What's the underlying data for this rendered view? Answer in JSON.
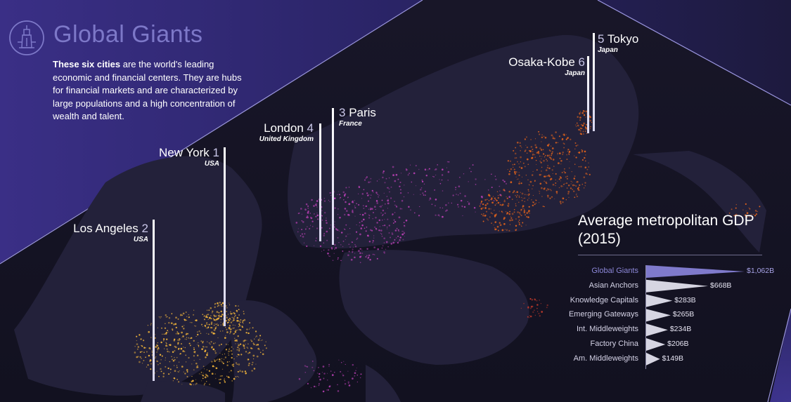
{
  "header": {
    "title": "Global Giants",
    "intro_bold": "These six cities",
    "intro_rest": " are the world's leading economic and financial centers. They are hubs for financial markets and are characterized by large populations and a high concentration of wealth and talent."
  },
  "cities": [
    {
      "rank": "1",
      "name": "New York",
      "country": "USA"
    },
    {
      "rank": "2",
      "name": "Los Angeles",
      "country": "USA"
    },
    {
      "rank": "3",
      "name": "Paris",
      "country": "France"
    },
    {
      "rank": "4",
      "name": "London",
      "country": "United Kingdom"
    },
    {
      "rank": "5",
      "name": "Tokyo",
      "country": "Japan"
    },
    {
      "rank": "6",
      "name": "Osaka-Kobe",
      "country": "Japan"
    }
  ],
  "colors": {
    "background": "#1b1932",
    "title": "#7d78c8",
    "americas_lights": "#f4b63a",
    "europe_lights": "#b43fb0",
    "asia_lights": "#e0621c",
    "highlight_bar": "#7f7acc",
    "other_bars": "#d6d5e2"
  },
  "chart_data": {
    "type": "bar",
    "orientation": "horizontal",
    "title": "Average metropolitan GDP (2015)",
    "categories": [
      "Global Giants",
      "Asian Anchors",
      "Knowledge Capitals",
      "Emerging Gateways",
      "Int. Middleweights",
      "Factory China",
      "Am. Middleweights"
    ],
    "values": [
      1062,
      668,
      283,
      265,
      234,
      206,
      149
    ],
    "value_labels": [
      "$1,062B",
      "$668B",
      "$283B",
      "$265B",
      "$234B",
      "$206B",
      "$149B"
    ],
    "unit": "billion USD",
    "highlighted": "Global Giants",
    "xlim": [
      0,
      1062
    ]
  }
}
